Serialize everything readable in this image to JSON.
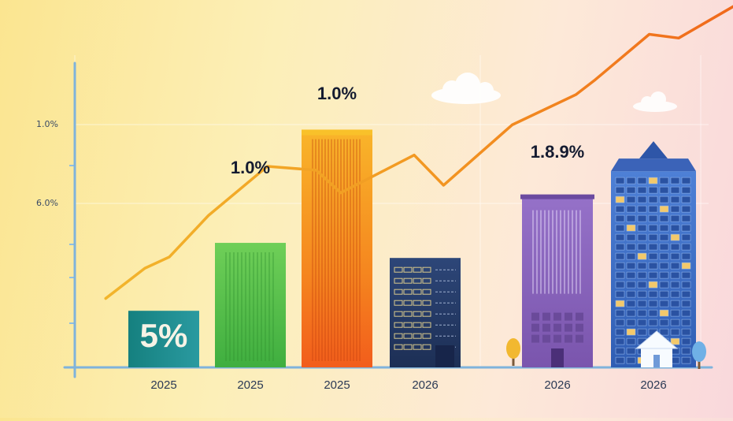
{
  "chart_data": {
    "type": "bar",
    "categories": [
      "2025",
      "2025",
      "2025",
      "2026",
      "2026",
      "2026"
    ],
    "values": [
      15,
      33,
      63,
      29,
      45,
      52
    ],
    "bar_labels": [
      "5%",
      "1.0%",
      "1.0%",
      "",
      "1.8.9%",
      ""
    ],
    "ytick_labels": [
      "1.0%",
      "6.0%"
    ],
    "ylim": [
      0,
      75
    ],
    "trend_line": {
      "points": [
        [
          0.05,
          12
        ],
        [
          0.45,
          20
        ],
        [
          0.7,
          23
        ],
        [
          1.1,
          34
        ],
        [
          1.7,
          47
        ],
        [
          2.2,
          46
        ],
        [
          2.45,
          40
        ],
        [
          3.2,
          50
        ],
        [
          3.5,
          42
        ],
        [
          4.2,
          58
        ],
        [
          4.85,
          66
        ],
        [
          5.05,
          70
        ],
        [
          5.6,
          82
        ],
        [
          5.9,
          81
        ],
        [
          6.9,
          96
        ]
      ]
    },
    "colors": {
      "bar_1": "#1a8a8f",
      "bar_2": "#5cc152",
      "bar_3": "#f58a1f",
      "bar_4": "#243a66",
      "bar_5": "#8561b8",
      "bar_6": "#3f6fc6",
      "line_start": "#f0b82a",
      "line_end": "#f06a1c"
    }
  }
}
